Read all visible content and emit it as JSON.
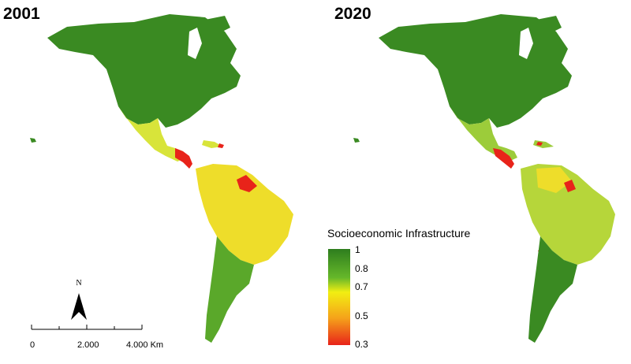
{
  "maps": [
    {
      "year": "2001"
    },
    {
      "year": "2020"
    }
  ],
  "legend": {
    "title": "Socioeconomic Infrastructure",
    "ticks": [
      "1",
      "0.8",
      "0.7",
      "0.5",
      "0.3"
    ],
    "tick_values": [
      1,
      0.8,
      0.7,
      0.5,
      0.3
    ],
    "range": [
      0.3,
      1
    ],
    "colors": {
      "high": "#2e7d1e",
      "mid_high": "#66b82a",
      "mid": "#f2ee12",
      "mid_low": "#f5a21a",
      "low": "#e8231a"
    }
  },
  "north_arrow": {
    "label": "N"
  },
  "scale": {
    "labels": [
      "0",
      "2.000",
      "4.000 Km"
    ]
  },
  "region_colors": {
    "north_america": "#3a8a22",
    "mexico_2001": "#d8e43a",
    "mexico_2020": "#9ccc3a",
    "central_am": "#e8231a",
    "south_2001": "#eedd2a",
    "south_2020": "#b6d63a",
    "southern_cone": "#5aa82a"
  }
}
